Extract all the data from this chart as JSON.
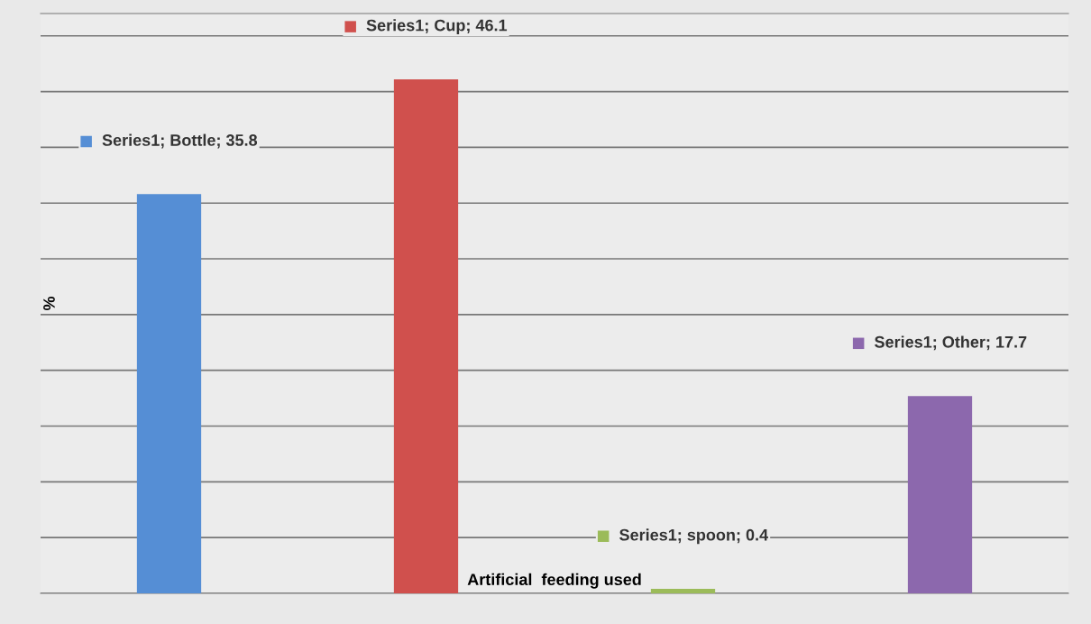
{
  "chart_data": {
    "type": "bar",
    "xlabel": "Artificial  feeding used",
    "ylabel": "%",
    "categories": [
      null,
      null,
      null,
      null
    ],
    "values": [
      35.8,
      46.1,
      0.4,
      17.7
    ],
    "colors": [
      "#558ed5",
      "#d0504d",
      "#9bbb59",
      "#8c68ad"
    ],
    "value_labels": [
      "Series1; Bottle; 35.8",
      "Series1; Cup; 46.1",
      "Series1; spoon; 0.4",
      "Series1; Other; 17.7"
    ],
    "ylim": [
      0,
      52
    ],
    "yticks": [
      {
        "value": 0,
        "label": null
      },
      {
        "value": 5,
        "label": null
      },
      {
        "value": 10,
        "label": null
      },
      {
        "value": 15,
        "label": null
      },
      {
        "value": 20,
        "label": null
      },
      {
        "value": 25,
        "label": null
      },
      {
        "value": 30,
        "label": null
      },
      {
        "value": 35,
        "label": null
      },
      {
        "value": 40,
        "label": null
      },
      {
        "value": 45,
        "label": null
      },
      {
        "value": 50,
        "label": null
      }
    ],
    "grid": "y",
    "tick_labels": false
  }
}
